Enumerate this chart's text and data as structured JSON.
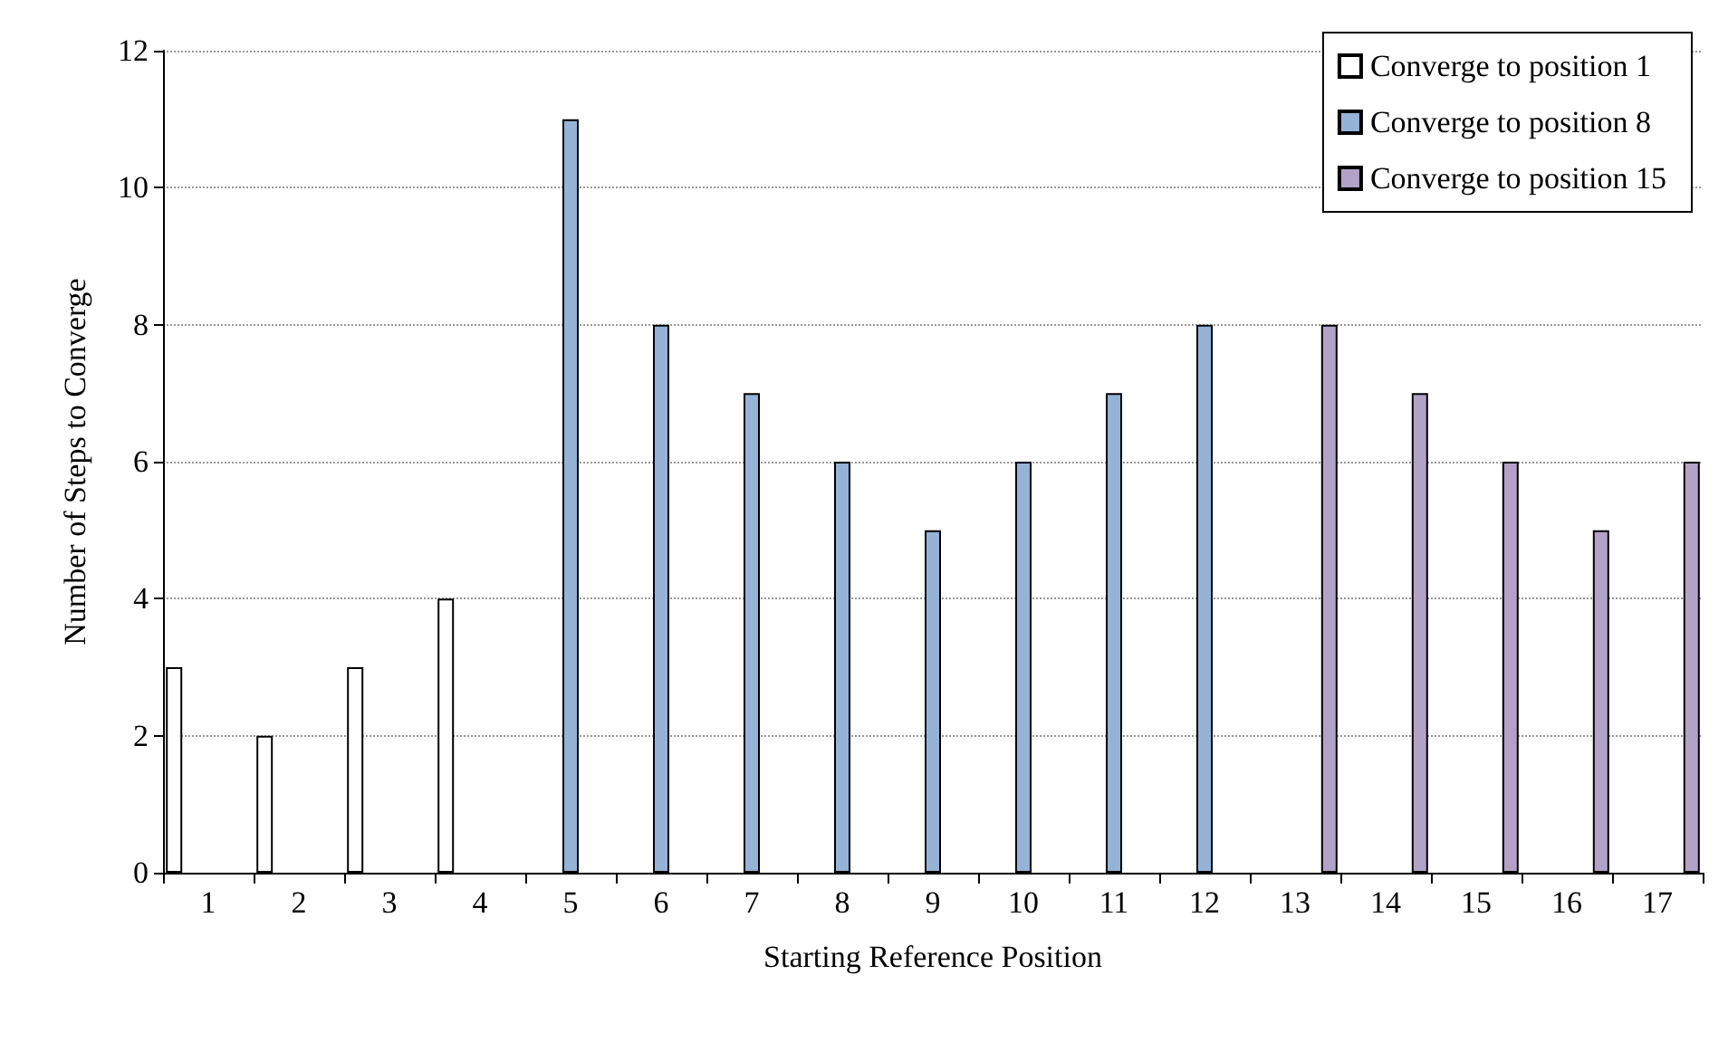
{
  "chart_data": {
    "type": "bar",
    "xlabel": "Starting Reference Position",
    "ylabel": "Number of Steps to Converge",
    "categories": [
      "1",
      "2",
      "3",
      "4",
      "5",
      "6",
      "7",
      "8",
      "9",
      "10",
      "11",
      "12",
      "13",
      "14",
      "15",
      "16",
      "17"
    ],
    "series": [
      {
        "name": "Converge to position 1",
        "color": "#ffffff",
        "values": [
          3,
          2,
          3,
          4,
          null,
          null,
          null,
          null,
          null,
          null,
          null,
          null,
          null,
          null,
          null,
          null,
          null
        ]
      },
      {
        "name": "Converge to position 8",
        "color": "#95b3d7",
        "values": [
          null,
          null,
          null,
          null,
          11,
          8,
          7,
          6,
          5,
          6,
          7,
          8,
          null,
          null,
          null,
          null,
          null
        ]
      },
      {
        "name": "Converge to position 15",
        "color": "#b3a2c7",
        "values": [
          null,
          null,
          null,
          null,
          null,
          null,
          null,
          null,
          null,
          null,
          null,
          null,
          8,
          7,
          6,
          5,
          6
        ]
      }
    ],
    "ylim": [
      0,
      12
    ],
    "yticks": [
      0,
      2,
      4,
      6,
      8,
      10,
      12
    ],
    "grid": "y",
    "legend": "top right"
  }
}
